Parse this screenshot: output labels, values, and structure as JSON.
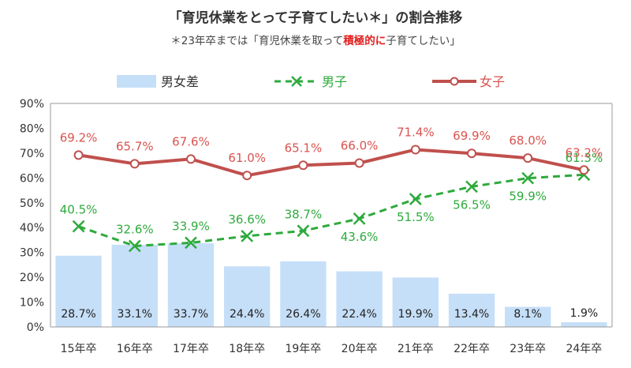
{
  "title": "「育児休業をとって子育てしたい＊」の割合推移",
  "subtitle": {
    "before": "＊23年卒までは「育児休業を取って",
    "emphasis": "積極的に",
    "after": "子育てしたい」"
  },
  "colors": {
    "gap_bar": "#c6dff8",
    "male_line": "#2eaa3c",
    "female_line": "#c0504d",
    "female_label": "#d9534f",
    "male_label": "#2eaa3c",
    "axis": "#9a9a9a"
  },
  "chart_data": {
    "type": "bar",
    "categories": [
      "15年卒",
      "16年卒",
      "17年卒",
      "18年卒",
      "19年卒",
      "20年卒",
      "21年卒",
      "22年卒",
      "23年卒",
      "24年卒"
    ],
    "ylim": [
      0,
      90
    ],
    "yticks": [
      "0%",
      "10%",
      "20%",
      "30%",
      "40%",
      "50%",
      "60%",
      "70%",
      "80%",
      "90%"
    ],
    "grid": false,
    "legend_position": "top",
    "series": [
      {
        "name": "男女差",
        "kind": "bar",
        "values": [
          28.7,
          33.1,
          33.7,
          24.4,
          26.4,
          22.4,
          19.9,
          13.4,
          8.1,
          1.9
        ],
        "labels": [
          "28.7%",
          "33.1%",
          "33.7%",
          "24.4%",
          "26.4%",
          "22.4%",
          "19.9%",
          "13.4%",
          "8.1%",
          "1.9%"
        ]
      },
      {
        "name": "男子",
        "kind": "line",
        "marker": "x",
        "dash": true,
        "values": [
          40.5,
          32.6,
          33.9,
          36.6,
          38.7,
          43.6,
          51.5,
          56.5,
          59.9,
          61.3
        ],
        "labels": [
          "40.5%",
          "32.6%",
          "33.9%",
          "36.6%",
          "38.7%",
          "43.6%",
          "51.5%",
          "56.5%",
          "59.9%",
          "61.3%"
        ]
      },
      {
        "name": "女子",
        "kind": "line",
        "marker": "circle",
        "values": [
          69.2,
          65.7,
          67.6,
          61.0,
          65.1,
          66.0,
          71.4,
          69.9,
          68.0,
          63.2
        ],
        "labels": [
          "69.2%",
          "65.7%",
          "67.6%",
          "61.0%",
          "65.1%",
          "66.0%",
          "71.4%",
          "69.9%",
          "68.0%",
          "63.2%"
        ]
      }
    ]
  }
}
